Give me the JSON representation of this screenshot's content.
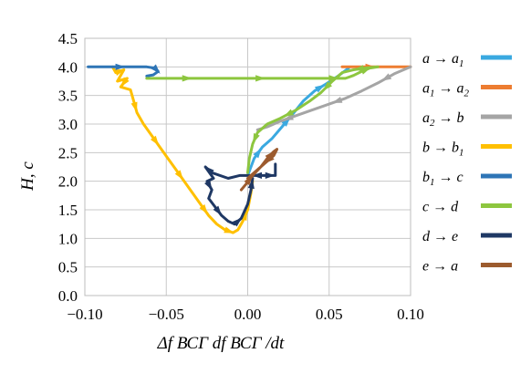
{
  "chart_data": {
    "type": "line",
    "xlabel": "Δf ВСГ df ВСГ /dt",
    "ylabel": "H, c",
    "xlim": [
      -0.1,
      0.1
    ],
    "ylim": [
      0.0,
      4.5
    ],
    "x_ticks": [
      "−0.10",
      "−0.05",
      "0.00",
      "0.05",
      "0.10"
    ],
    "y_ticks": [
      "0.0",
      "0.5",
      "1.0",
      "1.5",
      "2.0",
      "2.5",
      "3.0",
      "3.5",
      "4.0",
      "4.5"
    ],
    "grid": true,
    "legend_position": "right",
    "series": [
      {
        "name": "a → a1",
        "color": "#3aa9e0",
        "points": [
          [
            0.0,
            2.1
          ],
          [
            0.004,
            2.4
          ],
          [
            0.009,
            2.6
          ],
          [
            0.015,
            2.75
          ],
          [
            0.021,
            2.95
          ],
          [
            0.027,
            3.15
          ],
          [
            0.034,
            3.4
          ],
          [
            0.041,
            3.58
          ],
          [
            0.048,
            3.7
          ],
          [
            0.056,
            3.85
          ],
          [
            0.062,
            3.98
          ]
        ]
      },
      {
        "name": "a1 → a2",
        "color": "#ed7d31",
        "points": [
          [
            0.058,
            4.0
          ],
          [
            0.07,
            4.0
          ],
          [
            0.08,
            4.0
          ],
          [
            0.09,
            4.0
          ],
          [
            0.1,
            4.0
          ]
        ]
      },
      {
        "name": "a2 → b",
        "color": "#a5a5a5",
        "points": [
          [
            0.1,
            4.0
          ],
          [
            0.09,
            3.88
          ],
          [
            0.08,
            3.72
          ],
          [
            0.07,
            3.58
          ],
          [
            0.06,
            3.45
          ],
          [
            0.05,
            3.35
          ],
          [
            0.04,
            3.25
          ],
          [
            0.03,
            3.15
          ],
          [
            0.02,
            3.05
          ],
          [
            0.012,
            2.95
          ],
          [
            0.006,
            2.9
          ]
        ]
      },
      {
        "name": "b → b1",
        "color": "#ffc000",
        "points": [
          [
            -0.083,
            4.0
          ],
          [
            -0.081,
            3.9
          ],
          [
            -0.076,
            3.95
          ],
          [
            -0.08,
            3.75
          ],
          [
            -0.074,
            3.8
          ],
          [
            -0.078,
            3.65
          ],
          [
            -0.072,
            3.6
          ],
          [
            -0.07,
            3.4
          ],
          [
            -0.068,
            3.2
          ],
          [
            -0.064,
            3.0
          ],
          [
            -0.059,
            2.8
          ],
          [
            -0.054,
            2.6
          ],
          [
            -0.049,
            2.4
          ],
          [
            -0.044,
            2.2
          ],
          [
            -0.039,
            2.0
          ],
          [
            -0.034,
            1.8
          ],
          [
            -0.029,
            1.6
          ],
          [
            -0.024,
            1.4
          ],
          [
            -0.019,
            1.25
          ],
          [
            -0.014,
            1.15
          ],
          [
            -0.009,
            1.1
          ],
          [
            -0.006,
            1.15
          ],
          [
            -0.003,
            1.3
          ],
          [
            0.0,
            1.5
          ],
          [
            0.002,
            1.8
          ],
          [
            0.003,
            2.0
          ]
        ]
      },
      {
        "name": "b1 → c",
        "color": "#2e75b6",
        "points": [
          [
            -0.098,
            4.0
          ],
          [
            -0.085,
            4.0
          ],
          [
            -0.072,
            4.0
          ],
          [
            -0.062,
            4.0
          ],
          [
            -0.057,
            3.98
          ],
          [
            -0.055,
            3.92
          ],
          [
            -0.058,
            3.86
          ],
          [
            -0.062,
            3.84
          ]
        ]
      },
      {
        "name": "c → d",
        "color": "#8dc63f",
        "points": [
          [
            -0.062,
            3.8
          ],
          [
            -0.045,
            3.8
          ],
          [
            -0.03,
            3.8
          ],
          [
            -0.015,
            3.8
          ],
          [
            0.0,
            3.8
          ],
          [
            0.015,
            3.8
          ],
          [
            0.03,
            3.8
          ],
          [
            0.045,
            3.8
          ],
          [
            0.06,
            3.8
          ],
          [
            0.065,
            3.85
          ],
          [
            0.07,
            3.92
          ],
          [
            0.075,
            3.98
          ],
          [
            0.08,
            4.0
          ],
          [
            0.072,
            3.98
          ],
          [
            0.065,
            3.95
          ],
          [
            0.058,
            3.9
          ],
          [
            0.052,
            3.75
          ],
          [
            0.045,
            3.55
          ],
          [
            0.038,
            3.4
          ],
          [
            0.03,
            3.25
          ],
          [
            0.02,
            3.1
          ],
          [
            0.012,
            3.0
          ],
          [
            0.006,
            2.85
          ],
          [
            0.003,
            2.65
          ],
          [
            0.001,
            2.4
          ],
          [
            0.0,
            2.15
          ]
        ]
      },
      {
        "name": "d → e",
        "color": "#1f3864",
        "points": [
          [
            0.001,
            2.1
          ],
          [
            0.01,
            2.1
          ],
          [
            0.017,
            2.1
          ],
          [
            0.017,
            2.3
          ],
          [
            0.017,
            2.1
          ],
          [
            -0.005,
            2.1
          ],
          [
            -0.012,
            2.05
          ],
          [
            -0.022,
            2.15
          ],
          [
            -0.026,
            2.25
          ],
          [
            -0.021,
            2.05
          ],
          [
            -0.025,
            2.0
          ],
          [
            -0.022,
            1.85
          ],
          [
            -0.024,
            1.7
          ],
          [
            -0.02,
            1.55
          ],
          [
            -0.016,
            1.4
          ],
          [
            -0.012,
            1.3
          ],
          [
            -0.008,
            1.25
          ],
          [
            -0.004,
            1.35
          ],
          [
            0.0,
            1.6
          ],
          [
            0.002,
            1.85
          ],
          [
            0.003,
            2.05
          ]
        ]
      },
      {
        "name": "e → a",
        "color": "#9c5b2e",
        "points": [
          [
            -0.004,
            1.85
          ],
          [
            -0.001,
            1.95
          ],
          [
            0.003,
            2.1
          ],
          [
            0.008,
            2.25
          ],
          [
            0.012,
            2.4
          ],
          [
            0.016,
            2.52
          ],
          [
            0.018,
            2.56
          ],
          [
            0.016,
            2.45
          ],
          [
            0.01,
            2.3
          ],
          [
            0.004,
            2.15
          ],
          [
            0.0,
            2.05
          ]
        ]
      }
    ],
    "legend": [
      {
        "base": "a → a",
        "sub": "1"
      },
      {
        "base": "a",
        "sub": "1",
        "tail": " → a",
        "sub2": "2"
      },
      {
        "base": "a",
        "sub": "2",
        "tail": " → b"
      },
      {
        "base": "b → b",
        "sub": "1"
      },
      {
        "base": "b",
        "sub": "1",
        "tail": " → c"
      },
      {
        "base": "c → d"
      },
      {
        "base": "d → e"
      },
      {
        "base": "e → a"
      }
    ]
  }
}
